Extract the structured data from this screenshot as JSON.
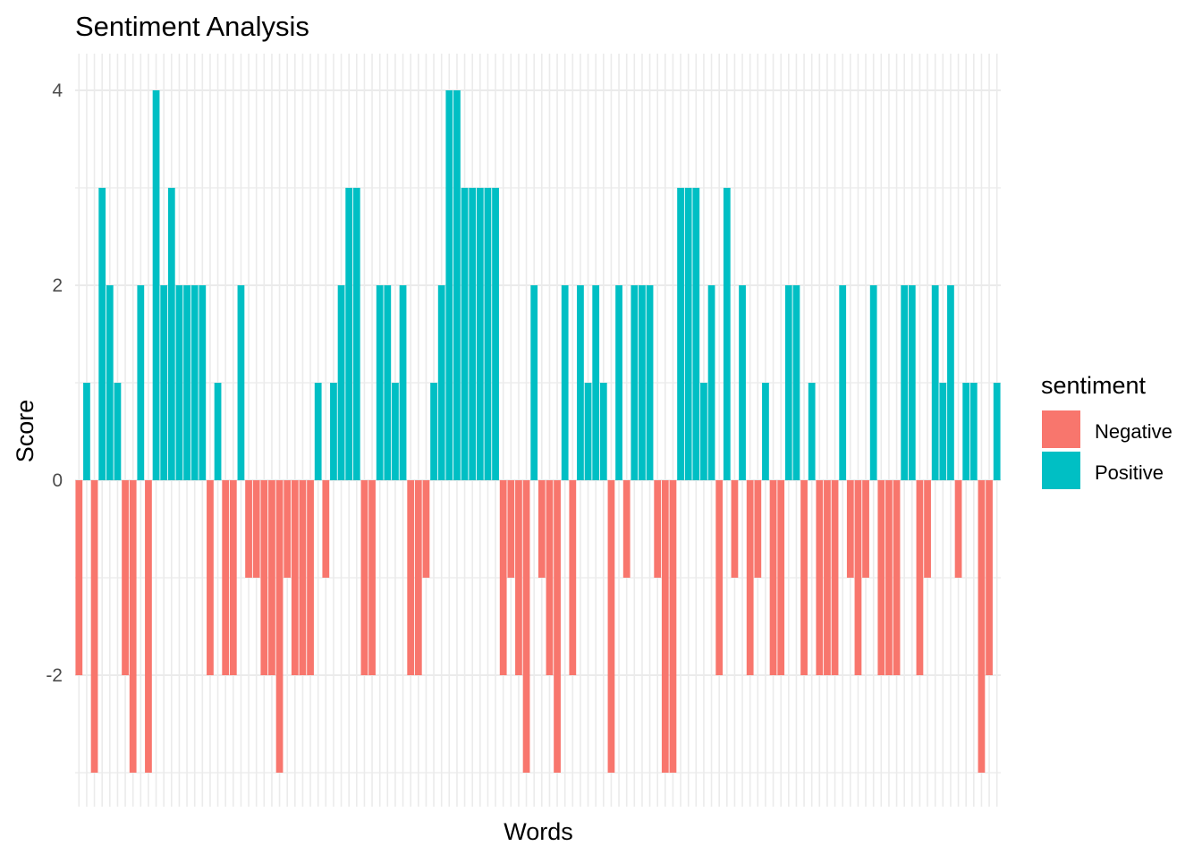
{
  "chart_data": {
    "type": "bar",
    "title": "Sentiment Analysis",
    "xlabel": "Words",
    "ylabel": "Score",
    "ylim": [
      -3.3,
      4.35
    ],
    "yticks": [
      -2,
      0,
      2,
      4
    ],
    "grid": true,
    "legend": {
      "title": "sentiment",
      "placement": "right",
      "entries": [
        {
          "label": "Negative",
          "color": "#F8766D"
        },
        {
          "label": "Positive",
          "color": "#00BFC4"
        }
      ]
    },
    "values": [
      -2,
      1,
      -3,
      3,
      2,
      1,
      -2,
      -3,
      2,
      -3,
      4,
      2,
      3,
      2,
      2,
      2,
      2,
      -2,
      1,
      -2,
      -2,
      2,
      -1,
      -1,
      -2,
      -2,
      -3,
      -1,
      -2,
      -2,
      -2,
      1,
      -1,
      1,
      2,
      3,
      3,
      -2,
      -2,
      2,
      2,
      1,
      2,
      -2,
      -2,
      -1,
      1,
      2,
      4,
      4,
      3,
      3,
      3,
      3,
      3,
      -2,
      -1,
      -2,
      -3,
      2,
      -1,
      -2,
      -3,
      2,
      -2,
      2,
      1,
      2,
      1,
      -3,
      2,
      -1,
      2,
      2,
      2,
      -1,
      -3,
      -3,
      3,
      3,
      3,
      1,
      2,
      -2,
      3,
      -1,
      2,
      -2,
      -1,
      1,
      -2,
      -2,
      2,
      2,
      -2,
      1,
      -2,
      -2,
      -2,
      2,
      -1,
      -2,
      -1,
      2,
      -2,
      -2,
      -2,
      2,
      2,
      -2,
      -1,
      2,
      1,
      2,
      -1,
      1,
      1,
      -3,
      -2,
      1
    ]
  }
}
